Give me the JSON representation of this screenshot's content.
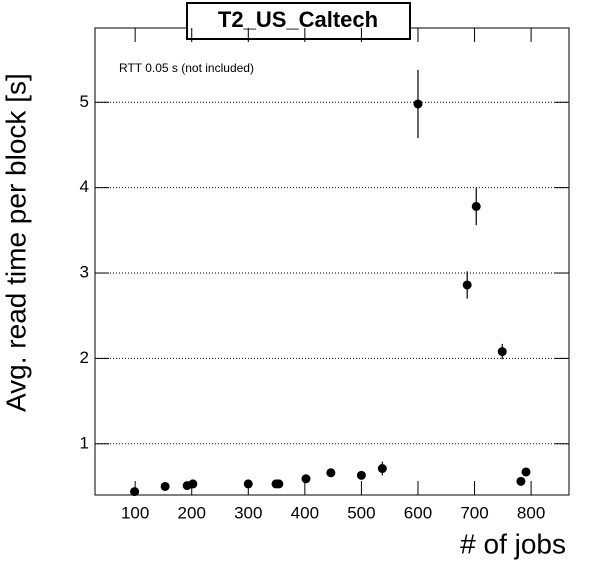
{
  "chart_data": {
    "type": "scatter",
    "title": "T2_US_Caltech",
    "annotation": "RTT 0.05 s (not included)",
    "xlabel": "# of jobs",
    "ylabel": "Avg. read time per block [s]",
    "x": [
      99,
      153,
      192,
      202,
      300,
      349,
      354,
      402,
      446,
      500,
      537,
      600,
      687,
      703,
      749,
      782,
      791
    ],
    "values": [
      0.44,
      0.5,
      0.51,
      0.53,
      0.53,
      0.53,
      0.53,
      0.59,
      0.66,
      0.63,
      0.71,
      4.98,
      2.86,
      3.78,
      2.08,
      0.56,
      0.67
    ],
    "errors": [
      0.02,
      0.02,
      0.02,
      0.02,
      0.02,
      0.02,
      0.02,
      0.02,
      0.02,
      0.03,
      0.08,
      0.4,
      0.16,
      0.22,
      0.09,
      0.02,
      0.03
    ],
    "color": "#000000",
    "xlim": [
      29,
      867
    ],
    "ylim": [
      0.4,
      5.87
    ],
    "xticks": [
      100,
      200,
      300,
      400,
      500,
      600,
      700,
      800
    ],
    "yticks": [
      1,
      2,
      3,
      4,
      5
    ],
    "grid": true
  }
}
